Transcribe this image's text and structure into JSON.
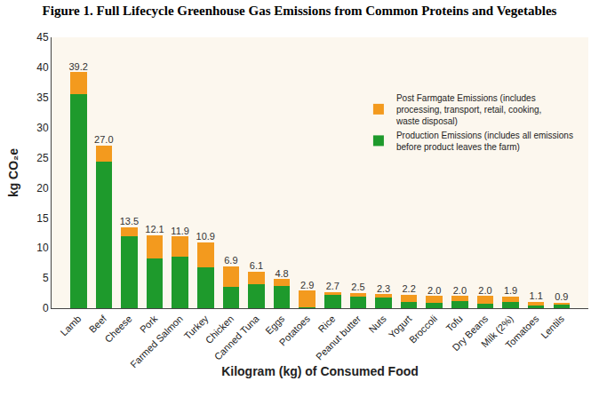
{
  "chart_data": {
    "type": "bar",
    "title": "Figure 1. Full Lifecycle Greenhouse Gas Emissions from Common Proteins and Vegetables",
    "x_label": "Kilogram (kg) of Consumed Food",
    "y_label": "kg CO₂e",
    "categories": [
      "Lamb",
      "Beef",
      "Cheese",
      "Pork",
      "Farmed Salmon",
      "Turkey",
      "Chicken",
      "Canned Tuna",
      "Eggs",
      "Potatoes",
      "Rice",
      "Peanut butter",
      "Nuts",
      "Yogurt",
      "Broccoli",
      "Tofu",
      "Dry Beans",
      "Milk (2%)",
      "Tomatoes",
      "Lentils"
    ],
    "series": [
      {
        "name": "Production Emissions (includes all emissions\nbefore product leaves the farm)",
        "color": "#1e9a2c",
        "values": [
          35.5,
          24.3,
          11.9,
          8.2,
          8.5,
          6.8,
          3.6,
          4.0,
          3.7,
          0.2,
          2.2,
          1.9,
          1.7,
          1.1,
          0.9,
          1.2,
          0.7,
          1.0,
          0.4,
          0.7
        ]
      },
      {
        "name": "Post Farmgate Emissions (includes\nprocessing, transport, retail, cooking,\nwaste disposal)",
        "color": "#f39a1e",
        "values": [
          3.7,
          2.7,
          1.6,
          3.9,
          3.4,
          4.1,
          3.3,
          2.1,
          1.1,
          2.7,
          0.5,
          0.6,
          0.6,
          1.1,
          1.1,
          0.8,
          1.3,
          0.9,
          0.7,
          0.2
        ]
      }
    ],
    "totals": [
      39.2,
      27.0,
      13.5,
      12.1,
      11.9,
      10.9,
      6.9,
      6.1,
      4.8,
      2.9,
      2.7,
      2.5,
      2.3,
      2.2,
      2.0,
      2.0,
      2.0,
      1.9,
      1.1,
      0.9
    ],
    "total_labels": [
      "39.2",
      "27.0",
      "13.5",
      "12.1",
      "11.9",
      "10.9",
      "6.9",
      "6.1",
      "4.8",
      "2.9",
      "2.7",
      "2.5",
      "2.3",
      "2.2",
      "2.0",
      "2.0",
      "2.0",
      "1.9",
      "1.1",
      "0.9"
    ],
    "stacked": true,
    "ylim": [
      0,
      45
    ],
    "yticks": [
      0,
      5,
      10,
      15,
      20,
      25,
      30,
      35,
      40,
      45
    ],
    "grid": false,
    "legend": "top right"
  }
}
